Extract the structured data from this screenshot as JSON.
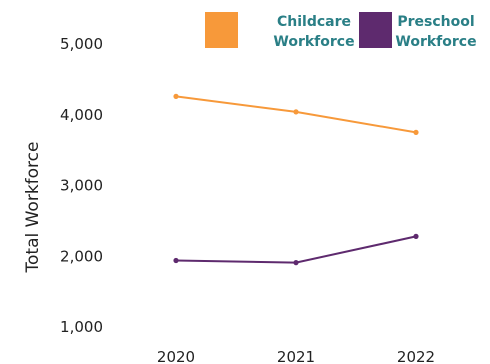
{
  "chart_data": {
    "type": "line",
    "x": [
      "2020",
      "2021",
      "2022"
    ],
    "series": [
      {
        "name_line1": "Childcare",
        "name_line2": "Workforce",
        "name": "Childcare Workforce",
        "values": [
          4260,
          4040,
          3750
        ],
        "color": "#f7993a",
        "text_color": "#2a7f86"
      },
      {
        "name_line1": "Preschool",
        "name_line2": "Workforce",
        "name": "Preschool Workforce",
        "values": [
          1940,
          1910,
          2280
        ],
        "color": "#5e2a6e",
        "text_color": "#2a7f86"
      }
    ],
    "ylabel": "Total Workforce",
    "yticks": [
      "1,000",
      "2,000",
      "3,000",
      "4,000",
      "5,000"
    ],
    "ytick_values": [
      1000,
      2000,
      3000,
      4000,
      5000
    ],
    "ylim": [
      1000,
      5000
    ],
    "grid": false,
    "legend_position": "top-right"
  }
}
